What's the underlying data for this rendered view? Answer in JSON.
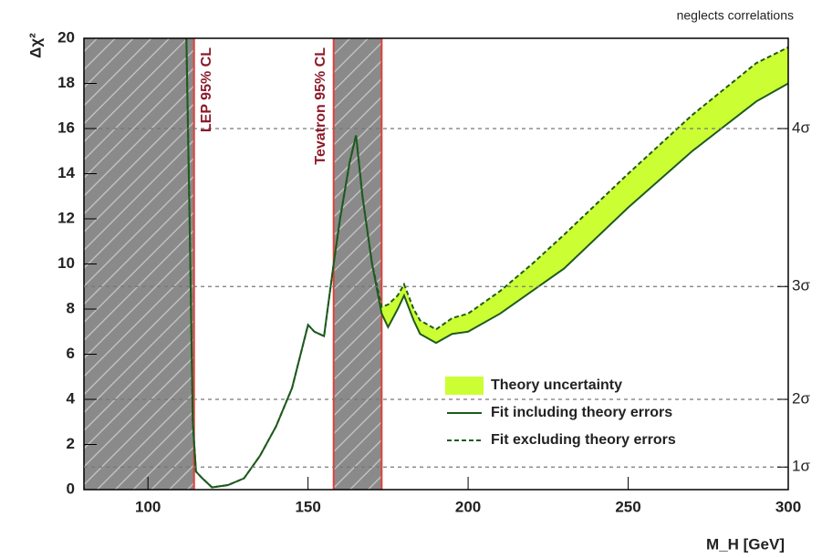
{
  "chart_data": {
    "type": "line",
    "note": "neglects correlations",
    "ylabel": "Δχ²",
    "xlabel": "M_H [GeV]",
    "xlim": [
      80,
      300
    ],
    "xticks": [
      100,
      150,
      200,
      250,
      300
    ],
    "ylim": [
      0,
      20
    ],
    "yticks": [
      0,
      2,
      4,
      6,
      8,
      10,
      12,
      14,
      16,
      18,
      20
    ],
    "y2ticks": [
      {
        "value": 1,
        "label": "1σ"
      },
      {
        "value": 4,
        "label": "2σ"
      },
      {
        "value": 9,
        "label": "3σ"
      },
      {
        "value": 16,
        "label": "4σ"
      }
    ],
    "legend": "lower right",
    "regions": [
      {
        "label": "LEP 95% CL",
        "max": 114.4
      },
      {
        "label": "Tevatron 95% CL",
        "min": 158,
        "max": 173
      }
    ],
    "band": {
      "name": "Theory uncertainty",
      "color": "#ccff33"
    },
    "x": [
      112,
      113,
      114,
      115,
      117,
      120,
      125,
      130,
      135,
      140,
      145,
      150,
      152,
      155,
      158,
      160,
      163,
      165,
      167,
      170,
      173,
      175,
      178,
      180,
      183,
      185,
      190,
      195,
      200,
      210,
      220,
      230,
      250,
      270,
      290,
      300
    ],
    "series": [
      {
        "name": "Fit including theory errors",
        "color": "#1e5a1e",
        "dash": false,
        "values": [
          20,
          12,
          3,
          0.8,
          0.5,
          0.1,
          0.2,
          0.5,
          1.5,
          2.8,
          4.5,
          7.3,
          7.0,
          6.8,
          10,
          12,
          14.5,
          15.7,
          13,
          10,
          7.8,
          7.2,
          8,
          8.6,
          7.5,
          6.9,
          6.5,
          6.9,
          7.0,
          7.8,
          8.8,
          9.8,
          12.5,
          15,
          17.2,
          18
        ]
      },
      {
        "name": "Fit excluding theory errors",
        "color": "#1e5a1e",
        "dash": true,
        "values": [
          20,
          12,
          3,
          0.8,
          0.5,
          0.1,
          0.2,
          0.5,
          1.5,
          2.8,
          4.5,
          7.3,
          7.0,
          6.8,
          10,
          12,
          14.5,
          15.7,
          13,
          10,
          8.1,
          8.2,
          8.6,
          9.1,
          8.0,
          7.5,
          7.1,
          7.6,
          7.8,
          8.8,
          10,
          11.3,
          14,
          16.6,
          18.9,
          19.6
        ]
      }
    ]
  }
}
